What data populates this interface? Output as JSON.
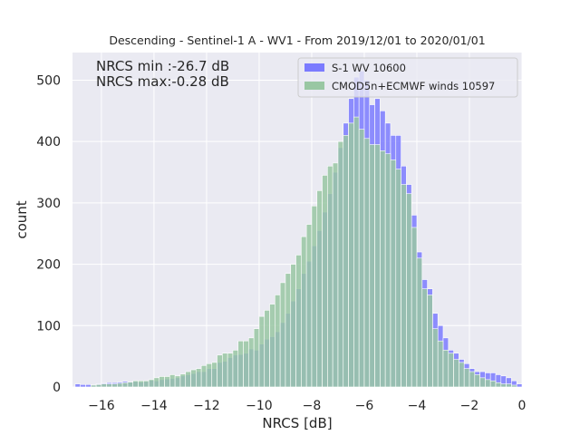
{
  "chart_data": {
    "type": "bar",
    "title": "Descending - Sentinel-1 A - WV1 - From 2019/12/01 to 2020/01/01",
    "xlabel": "NRCS [dB]",
    "ylabel": "count",
    "xlim": [
      -17.1,
      0
    ],
    "ylim": [
      0,
      545
    ],
    "xticks": [
      -16,
      -14,
      -12,
      -10,
      -8,
      -6,
      -4,
      -2,
      0
    ],
    "yticks": [
      0,
      100,
      200,
      300,
      400,
      500
    ],
    "grid": true,
    "legend_position": "top-right",
    "annotations": [
      "NRCS min :-26.7 dB",
      "NRCS max:-0.28 dB"
    ],
    "bin_width": 0.2,
    "bin_start": -17.0,
    "series": [
      {
        "name": "S-1 WV 10600",
        "color": "#7b7bff",
        "values": [
          5,
          4,
          4,
          3,
          5,
          6,
          7,
          7,
          8,
          9,
          8,
          9,
          8,
          9,
          11,
          10,
          12,
          13,
          14,
          15,
          18,
          20,
          22,
          25,
          25,
          30,
          30,
          40,
          42,
          48,
          52,
          53,
          55,
          62,
          60,
          70,
          78,
          82,
          90,
          105,
          120,
          140,
          160,
          185,
          205,
          230,
          255,
          285,
          315,
          350,
          390,
          430,
          470,
          505,
          515,
          500,
          460,
          470,
          450,
          430,
          410,
          410,
          360,
          330,
          280,
          220,
          175,
          160,
          120,
          100,
          80,
          60,
          55,
          45,
          38,
          30,
          25,
          25,
          23,
          23,
          20,
          18,
          15,
          10,
          5
        ]
      },
      {
        "name": "CMOD5n+ECMWF winds 10597",
        "color": "#99c7a3",
        "values": [
          0,
          0,
          0,
          3,
          4,
          5,
          5,
          5,
          6,
          7,
          8,
          10,
          10,
          10,
          12,
          15,
          17,
          17,
          20,
          18,
          21,
          25,
          28,
          30,
          35,
          38,
          40,
          52,
          55,
          55,
          60,
          75,
          75,
          80,
          95,
          115,
          125,
          135,
          150,
          170,
          185,
          200,
          215,
          245,
          265,
          295,
          320,
          345,
          360,
          365,
          400,
          410,
          430,
          440,
          420,
          405,
          395,
          395,
          385,
          380,
          370,
          355,
          330,
          315,
          260,
          210,
          160,
          150,
          95,
          75,
          60,
          55,
          45,
          40,
          30,
          25,
          20,
          15,
          12,
          10,
          7,
          5,
          5,
          3,
          0
        ]
      }
    ]
  }
}
